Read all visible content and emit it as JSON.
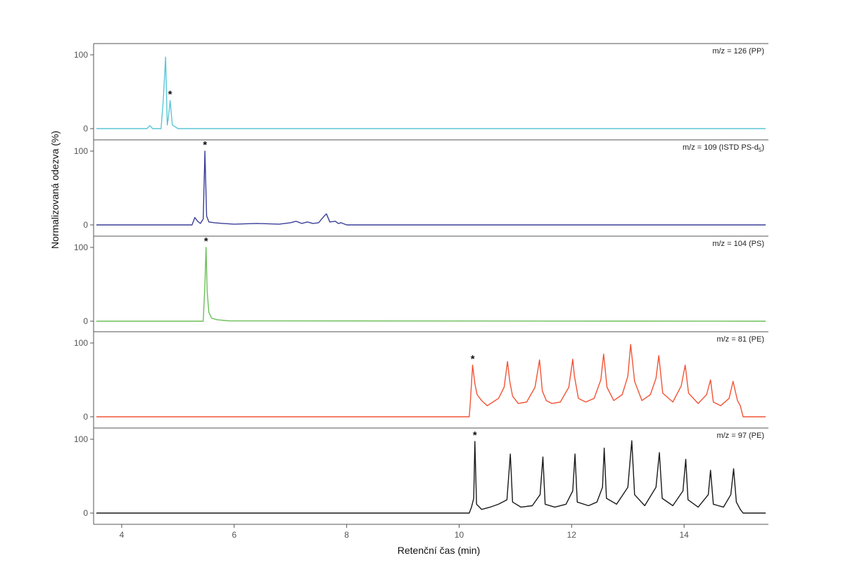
{
  "chart_data": {
    "type": "line",
    "title": "",
    "xlabel": "Retenční čas (min)",
    "ylabel": "Normalizovaná odezva (%)",
    "xlim": [
      3.5,
      15.5
    ],
    "x_ticks": [
      "4",
      "6",
      "8",
      "10",
      "12",
      "14"
    ],
    "y_ticks": [
      "0",
      "100"
    ],
    "ylim": [
      0,
      100
    ],
    "grid": false,
    "legend": "none",
    "peak_marker": "*",
    "panels": [
      {
        "label": "m/z = 126 (PP)",
        "label_main": "m/z = 126 (PP)",
        "label_sub": "",
        "color": "#5bc6d6",
        "x": [
          3.55,
          4.45,
          4.5,
          4.55,
          4.7,
          4.74,
          4.78,
          4.81,
          4.83,
          4.86,
          4.9,
          5.0,
          15.45
        ],
        "y": [
          0,
          0,
          4,
          0,
          0,
          40,
          97,
          5,
          15,
          38,
          5,
          0,
          0
        ],
        "marked_peak": {
          "x": 4.86,
          "y": 38
        }
      },
      {
        "label": "m/z = 109 (ISTD PS-d5)",
        "label_main": "m/z = 109 (ISTD PS-d",
        "label_sub": "5",
        "label_end": ")",
        "color": "#3a3f99",
        "x": [
          3.55,
          5.25,
          5.3,
          5.35,
          5.4,
          5.45,
          5.48,
          5.51,
          5.55,
          5.65,
          5.8,
          6.0,
          6.4,
          6.8,
          7.0,
          7.1,
          7.2,
          7.3,
          7.4,
          7.5,
          7.6,
          7.64,
          7.7,
          7.8,
          7.85,
          7.9,
          8.0,
          15.45
        ],
        "y": [
          0,
          0,
          10,
          5,
          2,
          8,
          100,
          12,
          4,
          3,
          2,
          1,
          2,
          1,
          3,
          5,
          2,
          4,
          2,
          3,
          12,
          15,
          4,
          5,
          2,
          3,
          0,
          0
        ],
        "marked_peak": {
          "x": 5.48,
          "y": 100
        }
      },
      {
        "label": "m/z = 104 (PS)",
        "label_main": "m/z = 104 (PS)",
        "label_sub": "",
        "color": "#6cbf59",
        "x": [
          3.55,
          5.45,
          5.48,
          5.5,
          5.52,
          5.55,
          5.6,
          5.7,
          5.9,
          15.45
        ],
        "y": [
          0,
          0,
          50,
          100,
          40,
          12,
          4,
          2,
          0.5,
          0
        ],
        "marked_peak": {
          "x": 5.5,
          "y": 100
        }
      },
      {
        "label": "m/z = 81 (PE)",
        "label_main": "m/z = 81 (PE)",
        "label_sub": "",
        "color": "#f25436",
        "x": [
          3.55,
          10.18,
          10.2,
          10.24,
          10.28,
          10.32,
          10.4,
          10.5,
          10.6,
          10.7,
          10.8,
          10.86,
          10.9,
          10.95,
          11.05,
          11.2,
          11.35,
          11.43,
          11.48,
          11.55,
          11.65,
          11.8,
          11.95,
          12.02,
          12.05,
          12.12,
          12.25,
          12.4,
          12.52,
          12.57,
          12.63,
          12.75,
          12.9,
          13.0,
          13.05,
          13.12,
          13.25,
          13.4,
          13.5,
          13.55,
          13.62,
          13.8,
          13.95,
          14.02,
          14.08,
          14.25,
          14.4,
          14.47,
          14.52,
          14.65,
          14.8,
          14.87,
          14.95,
          15.0,
          15.05,
          15.45
        ],
        "y": [
          0,
          0,
          20,
          70,
          45,
          30,
          22,
          15,
          20,
          25,
          40,
          75,
          48,
          28,
          18,
          20,
          40,
          77,
          35,
          22,
          18,
          20,
          40,
          78,
          55,
          25,
          20,
          25,
          50,
          85,
          40,
          22,
          30,
          55,
          98,
          48,
          22,
          30,
          52,
          83,
          32,
          20,
          42,
          70,
          32,
          18,
          30,
          50,
          20,
          15,
          25,
          48,
          22,
          15,
          0,
          0
        ],
        "marked_peak": {
          "x": 10.24,
          "y": 70
        }
      },
      {
        "label": "m/z = 97 (PE)",
        "label_main": "m/z = 97 (PE)",
        "label_sub": "",
        "color": "#1a1a1a",
        "x": [
          3.55,
          10.18,
          10.22,
          10.26,
          10.28,
          10.31,
          10.4,
          10.55,
          10.7,
          10.85,
          10.91,
          10.95,
          11.1,
          11.3,
          11.44,
          11.49,
          11.53,
          11.7,
          11.9,
          12.02,
          12.06,
          12.1,
          12.3,
          12.45,
          12.55,
          12.58,
          12.62,
          12.8,
          13.0,
          13.07,
          13.12,
          13.3,
          13.5,
          13.56,
          13.61,
          13.8,
          13.98,
          14.03,
          14.07,
          14.25,
          14.43,
          14.47,
          14.52,
          14.7,
          14.83,
          14.88,
          14.93,
          15.0,
          15.05,
          15.45
        ],
        "y": [
          0,
          0,
          8,
          20,
          97,
          12,
          5,
          8,
          12,
          18,
          80,
          15,
          8,
          10,
          25,
          76,
          12,
          8,
          12,
          30,
          80,
          15,
          10,
          15,
          35,
          88,
          20,
          12,
          35,
          98,
          25,
          10,
          35,
          82,
          20,
          10,
          30,
          73,
          18,
          8,
          25,
          58,
          12,
          8,
          25,
          60,
          15,
          5,
          0,
          0
        ],
        "marked_peak": {
          "x": 10.28,
          "y": 97
        }
      }
    ]
  }
}
